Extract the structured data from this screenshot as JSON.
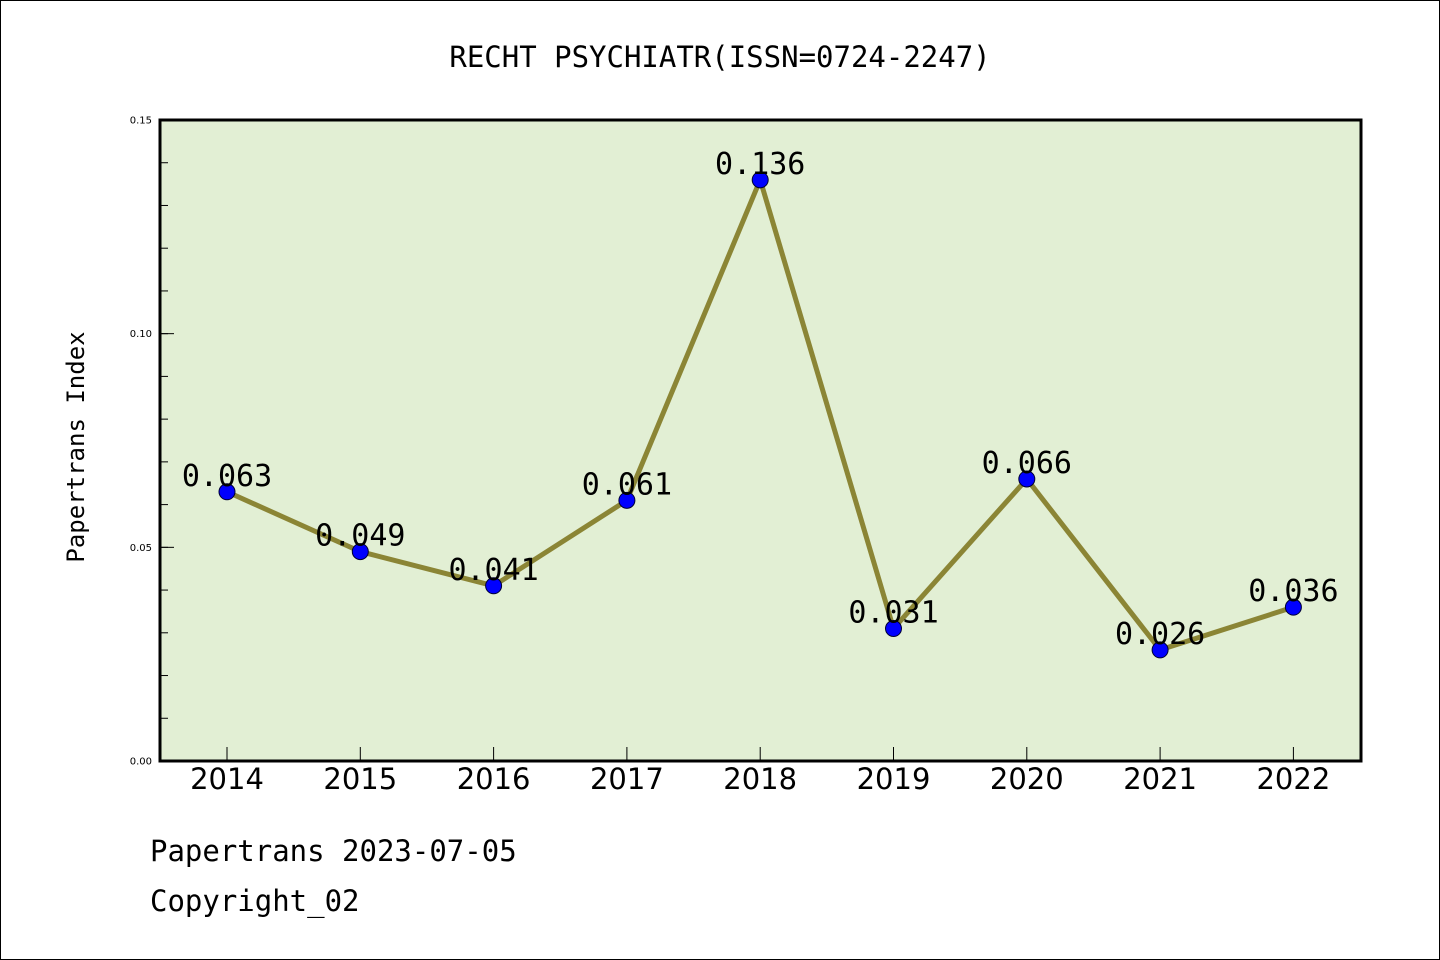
{
  "chart_data": {
    "type": "line",
    "title": "RECHT PSYCHIATR(ISSN=0724-2247)",
    "xlabel": "",
    "ylabel": "Papertrans Index",
    "categories": [
      "2014",
      "2015",
      "2016",
      "2017",
      "2018",
      "2019",
      "2020",
      "2021",
      "2022"
    ],
    "series": [
      {
        "values": [
          0.063,
          0.049,
          0.041,
          0.061,
          0.136,
          0.031,
          0.066,
          0.026,
          0.036
        ],
        "labels": [
          "0.063",
          "0.049",
          "0.041",
          "0.061",
          "0.136",
          "0.031",
          "0.066",
          "0.026",
          "0.036"
        ]
      }
    ],
    "ylim": [
      0,
      0.15
    ],
    "yticks": [
      0.0,
      0.05,
      0.1,
      0.15
    ],
    "ytick_labels": [
      "0.00",
      "0.05",
      "0.10",
      "0.15"
    ],
    "y_minor_step": 0.01,
    "grid": false,
    "legend": "none",
    "colors": {
      "plot_background": "#e2efd4",
      "line": "#8b8535",
      "marker": "#0000ff",
      "axes": "#000000"
    }
  },
  "footer": {
    "date_line": "Papertrans 2023-07-05",
    "copyright_line": "Copyright_02"
  }
}
